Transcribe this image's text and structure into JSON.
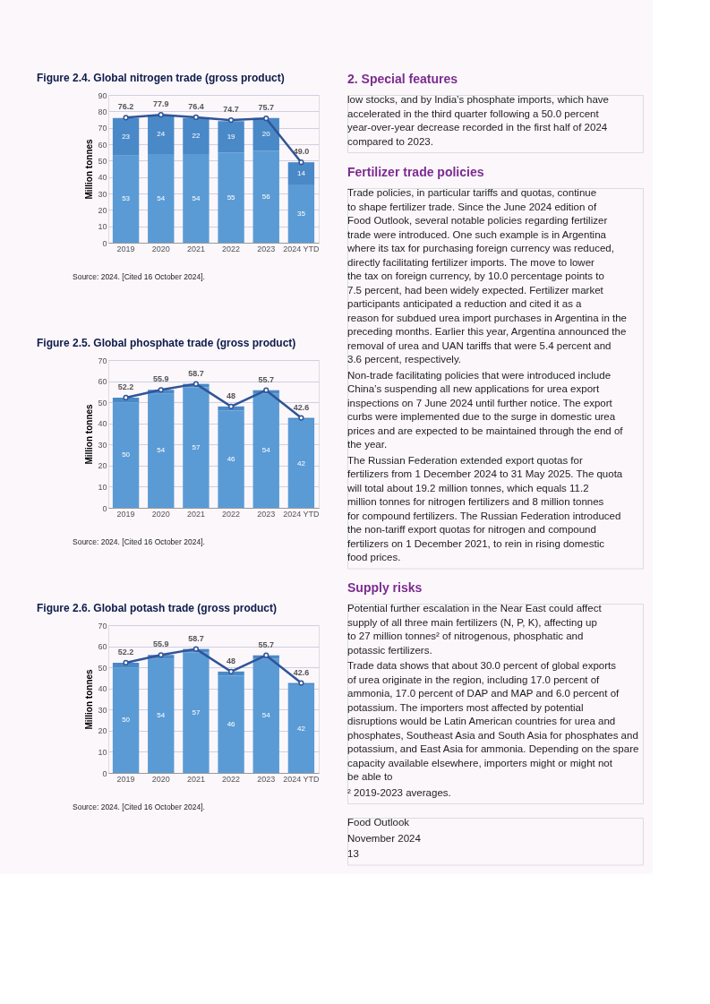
{
  "chart_data": [
    {
      "type": "bar",
      "title": "Figure 2.4. Global nitrogen trade (gross product)",
      "ylabel": "Million tonnes",
      "categories": [
        "2019",
        "2020",
        "2021",
        "2022",
        "2023",
        "2024 YTD"
      ],
      "stacked": true,
      "ylim": [
        0,
        90
      ],
      "yticks": [
        0,
        10,
        20,
        30,
        40,
        50,
        60,
        70,
        80,
        90
      ],
      "grid": "y",
      "data_labels": true,
      "series": [
        {
          "color": "#5b9bd5",
          "values": [
            53,
            54,
            54,
            55,
            56,
            35
          ]
        },
        {
          "color": "#4a89c8",
          "values": [
            23,
            24,
            22,
            19,
            20,
            14
          ]
        },
        {
          "type": "line",
          "color": "#2f5597",
          "marker": "circle",
          "line_style": "solid",
          "values": [
            76.2,
            77.9,
            76.4,
            74.7,
            75.7,
            49.0
          ],
          "value_labels": [
            "76.2",
            "77.9",
            "76.4",
            "74.7",
            "75.7",
            "49.0"
          ]
        }
      ],
      "annotations": [
        "Source: 2024. [Cited 16 October 2024]."
      ]
    },
    {
      "type": "bar",
      "title": "Figure 2.5. Global phosphate trade (gross product)",
      "ylabel": "Million tonnes",
      "categories": [
        "2019",
        "2020",
        "2021",
        "2022",
        "2023",
        "2024 YTD"
      ],
      "stacked": true,
      "ylim": [
        0,
        70
      ],
      "yticks": [
        0,
        10,
        20,
        30,
        40,
        50,
        60,
        70
      ],
      "grid": "y",
      "series": [
        {
          "color": "#5b9bd5",
          "values": [
            50,
            54,
            57,
            46,
            54,
            42
          ],
          "value_labels": [
            "50",
            "54",
            "57",
            "46",
            "54",
            "42"
          ]
        },
        {
          "color": "#4a89c8",
          "values": [
            2.2,
            1.9,
            1.7,
            2,
            1.7,
            0.6
          ]
        },
        {
          "type": "line",
          "color": "#2f5597",
          "marker": "circle",
          "line_style": "solid",
          "values": [
            52.2,
            55.9,
            58.7,
            48,
            55.7,
            42.6
          ],
          "value_labels": [
            "52.2",
            "55.9",
            "58.7",
            "48",
            "55.7",
            "42.6"
          ]
        }
      ],
      "annotations": [
        "Source: 2024. [Cited 16 October 2024]."
      ]
    },
    {
      "type": "bar",
      "title": "Figure 2.6. Global potash trade (gross product)",
      "ylabel": "Million tonnes",
      "categories": [
        "2019",
        "2020",
        "2021",
        "2022",
        "2023",
        "2024 YTD"
      ],
      "stacked": true,
      "ylim": [
        0,
        70
      ],
      "yticks": [
        0,
        10,
        20,
        30,
        40,
        50,
        60,
        70
      ],
      "grid": "y",
      "series": [
        {
          "color": "#5b9bd5",
          "values": [
            50,
            54,
            57,
            46,
            54,
            42
          ],
          "value_labels": [
            "50",
            "54",
            "57",
            "46",
            "54",
            "42"
          ]
        },
        {
          "color": "#4a89c8",
          "values": [
            2.2,
            1.9,
            1.7,
            2,
            1.7,
            0.6
          ]
        },
        {
          "type": "line",
          "color": "#2f5597",
          "marker": "circle",
          "line_style": "solid",
          "values": [
            52.2,
            55.9,
            58.7,
            48,
            55.7,
            42.6
          ],
          "value_labels": [
            "52.2",
            "55.9",
            "58.7",
            "48",
            "55.7",
            "42.6"
          ]
        }
      ],
      "annotations": [
        "Source: 2024. [Cited 16 October 2024]."
      ]
    },
    {
      "type": "other",
      "title": "2. Special features",
      "annotations": [
        "low stocks, and by India’s phosphate imports, which have accelerated in the third quarter following a 50.0 percent year-over-year decrease recorded in the first half of 2024 compared to 2023."
      ]
    },
    {
      "type": "other",
      "title": "Fertilizer trade policies",
      "annotations": [
        "Trade policies, in particular tariffs and quotas, continue to shape fertilizer trade. Since the June 2024 edition of Food Outlook, several notable policies regarding fertilizer trade were introduced. One such example is in Argentina where its tax for purchasing foreign currency was reduced, directly facilitating fertilizer imports. The move to lower the tax on foreign currency, by 10.0 percentage points to 7.5 percent, had been widely expected. Fertilizer market participants anticipated a reduction and cited it as a reason for subdued urea import purchases in Argentina in the preceding months. Earlier this year, Argentina announced the removal of urea and UAN tariffs that were 5.4 percent and 3.6 percent, respectively.",
        "Non-trade facilitating policies that were introduced include China’s suspending all new applications for urea export inspections on 7 June 2024 until further notice. The export curbs were implemented due to the surge in domestic urea prices and are expected to be maintained through the end of the year.",
        "The Russian Federation extended export quotas for fertilizers from 1 December 2024 to 31 May 2025. The quota will total about 19.2 million tonnes, which equals 11.2 million tonnes for nitrogen fertilizers and 8 million tonnes for compound fertilizers. The Russian Federation introduced the non-tariff export quotas for nitrogen and compound fertilizers on 1 December 2021, to rein in rising domestic food prices."
      ]
    },
    {
      "type": "other",
      "title": "Supply risks",
      "annotations": [
        "Potential further escalation in the Near East could affect supply of all three main fertilizers (N, P, K), affecting up to 27 million tonnes² of nitrogenous, phosphatic and potassic fertilizers.",
        "Trade data shows that about 30.0 percent of global exports of urea originate in the region, including 17.0 percent of ammonia, 17.0 percent of DAP and MAP and 6.0 percent of potassium. The importers most affected by potential disruptions would be Latin American countries for urea and phosphates, Southeast Asia and South Asia for phosphates and potassium, and East Asia for ammonia. Depending on the spare capacity available elsewhere, importers might or might not be able to",
        "² 2019-2023 averages."
      ]
    },
    {
      "type": "other",
      "annotations": [
        "Food Outlook",
        "November 2024",
        "13"
      ]
    }
  ]
}
